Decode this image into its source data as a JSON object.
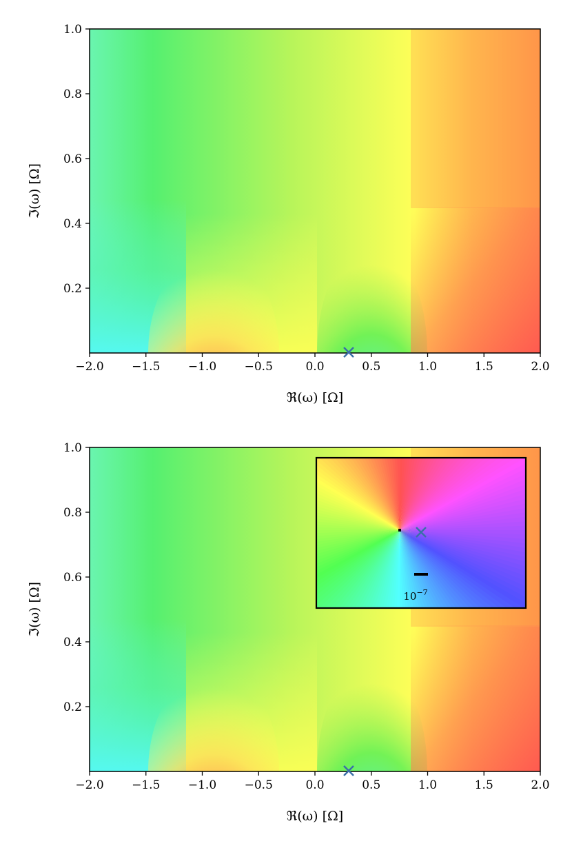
{
  "chart_data": [
    {
      "type": "heatmap",
      "description": "domain coloring (phase) of complex function in upper half plane",
      "xlabel": "ℜ(ω) [Ω]",
      "ylabel": "ℑ(ω) [Ω]",
      "xlim": [
        -2.0,
        2.0
      ],
      "ylim": [
        0.0,
        1.0
      ],
      "xticks": [
        "−2.0",
        "−1.5",
        "−1.0",
        "−0.5",
        "0.0",
        "0.5",
        "1.0",
        "1.5",
        "2.0"
      ],
      "yticks": [
        "0.2",
        "0.4",
        "0.6",
        "0.8",
        "1.0"
      ],
      "branch_points_real": [
        -1.15,
        -0.68,
        0.82
      ],
      "marker": {
        "symbol": "×",
        "x": 0.3,
        "y": 0.0,
        "color": "#3a6fa8"
      },
      "colors": {
        "cyan": "#55f5e0",
        "green": "#55f055",
        "yellow": "#ffff55",
        "red": "#ff5555",
        "orange": "#ff9a4a"
      }
    },
    {
      "type": "heatmap",
      "description": "same phase plot with zoomed inset around marker",
      "xlabel": "ℜ(ω) [Ω]",
      "ylabel": "ℑ(ω) [Ω]",
      "xlim": [
        -2.0,
        2.0
      ],
      "ylim": [
        0.0,
        1.0
      ],
      "xticks": [
        "−2.0",
        "−1.5",
        "−1.0",
        "−0.5",
        "0.0",
        "0.5",
        "1.0",
        "1.5",
        "2.0"
      ],
      "yticks": [
        "0.2",
        "0.4",
        "0.6",
        "0.8",
        "1.0"
      ],
      "marker": {
        "symbol": "×",
        "x": 0.3,
        "y": 0.0,
        "color": "#3a6fa8"
      },
      "inset": {
        "scale_bar_label_base": "10",
        "scale_bar_label_exp": "−7",
        "colors": {
          "red": "#ff5555",
          "magenta": "#ff55ff",
          "blue": "#5555ff",
          "cyan": "#55ffff",
          "green": "#55ff55",
          "yellow": "#ffff55"
        }
      }
    }
  ]
}
